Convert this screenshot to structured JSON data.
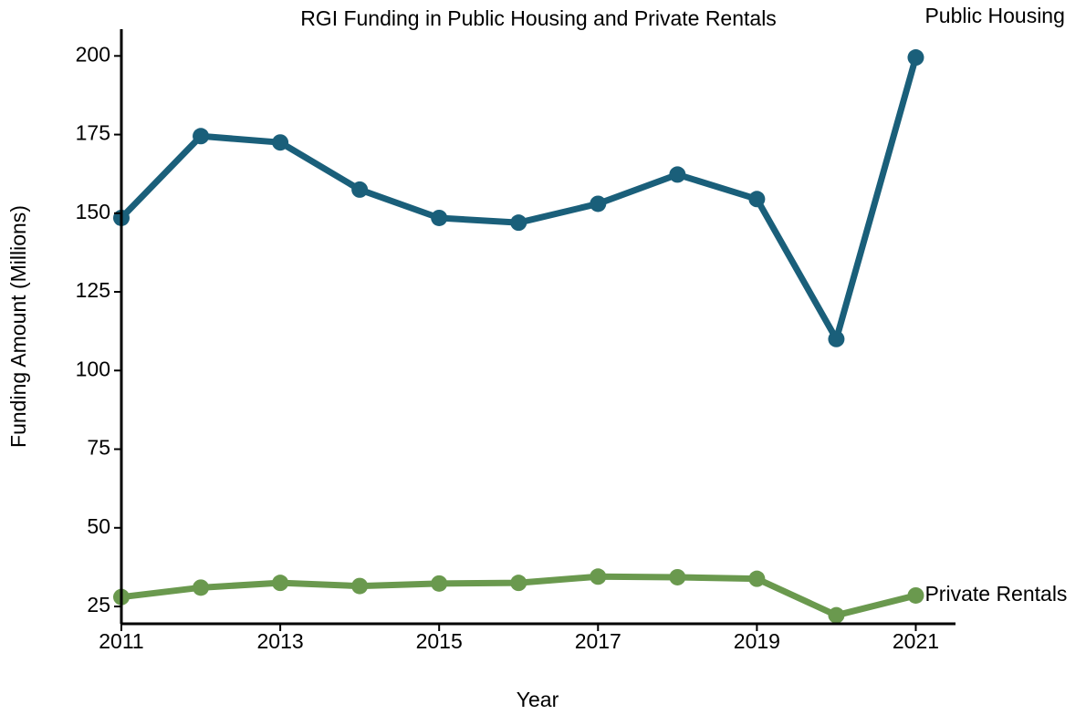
{
  "chart_data": {
    "type": "line",
    "title": "RGI Funding in Public Housing and Private Rentals",
    "xlabel": "Year",
    "ylabel": "Funding Amount (Millions)",
    "x": [
      2011,
      2012,
      2013,
      2014,
      2015,
      2016,
      2017,
      2018,
      2019,
      2020,
      2021
    ],
    "xlim": [
      2011,
      2021.5
    ],
    "ylim": [
      19.5,
      208.5
    ],
    "x_ticks": [
      "2011",
      "2013",
      "2015",
      "2017",
      "2019",
      "2021"
    ],
    "y_ticks": [
      "25",
      "50",
      "75",
      "100",
      "125",
      "150",
      "175",
      "200"
    ],
    "grid": false,
    "legend": "none",
    "series": [
      {
        "name": "Public Housing",
        "color": "#1a5f7a",
        "values": [
          148.5,
          174.5,
          172.5,
          157.5,
          148.5,
          147,
          153,
          162.3,
          154.5,
          110,
          199.5
        ]
      },
      {
        "name": "Private Rentals",
        "color": "#6a994e",
        "values": [
          28,
          31,
          32.5,
          31.5,
          32.3,
          32.5,
          34.5,
          34.3,
          33.8,
          22.2,
          28.5
        ]
      }
    ]
  }
}
